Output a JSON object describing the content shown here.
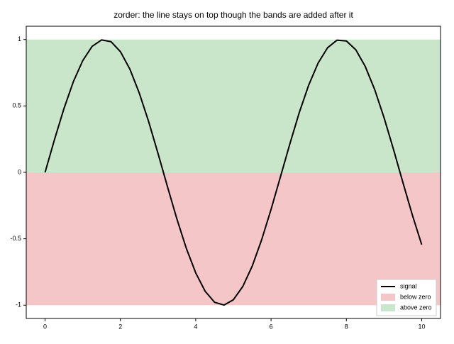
{
  "chart_data": {
    "type": "line",
    "title": "zorder: the line stays on top though the bands are added after it",
    "x": [
      0,
      0.25,
      0.5,
      0.75,
      1,
      1.25,
      1.5,
      1.75,
      2,
      2.25,
      2.5,
      2.75,
      3,
      3.25,
      3.5,
      3.75,
      4,
      4.25,
      4.5,
      4.75,
      5,
      5.25,
      5.5,
      5.75,
      6,
      6.25,
      6.5,
      6.75,
      7,
      7.25,
      7.5,
      7.75,
      8,
      8.25,
      8.5,
      8.75,
      9,
      9.25,
      9.5,
      9.75,
      10
    ],
    "series": [
      {
        "name": "signal",
        "color": "#000000",
        "values": [
          0,
          0.247,
          0.479,
          0.682,
          0.841,
          0.949,
          0.997,
          0.984,
          0.909,
          0.778,
          0.598,
          0.382,
          0.141,
          -0.108,
          -0.351,
          -0.572,
          -0.757,
          -0.895,
          -0.978,
          -0.999,
          -0.959,
          -0.859,
          -0.706,
          -0.508,
          -0.279,
          -0.033,
          0.215,
          0.451,
          0.657,
          0.823,
          0.938,
          0.995,
          0.989,
          0.923,
          0.798,
          0.625,
          0.412,
          0.174,
          -0.075,
          -0.319,
          -0.544
        ]
      }
    ],
    "bands": [
      {
        "name": "below zero",
        "color": "#f4c6c7",
        "range": [
          -1,
          0
        ]
      },
      {
        "name": "above zero",
        "color": "#cae6ca",
        "range": [
          0,
          1
        ]
      }
    ],
    "xlim": [
      -0.5,
      10.5
    ],
    "ylim": [
      -1.1,
      1.1
    ],
    "xticks": [
      0,
      2,
      4,
      6,
      8,
      10
    ],
    "yticks": [
      -1,
      -0.5,
      0,
      0.5,
      1
    ],
    "legend": "lower right"
  }
}
